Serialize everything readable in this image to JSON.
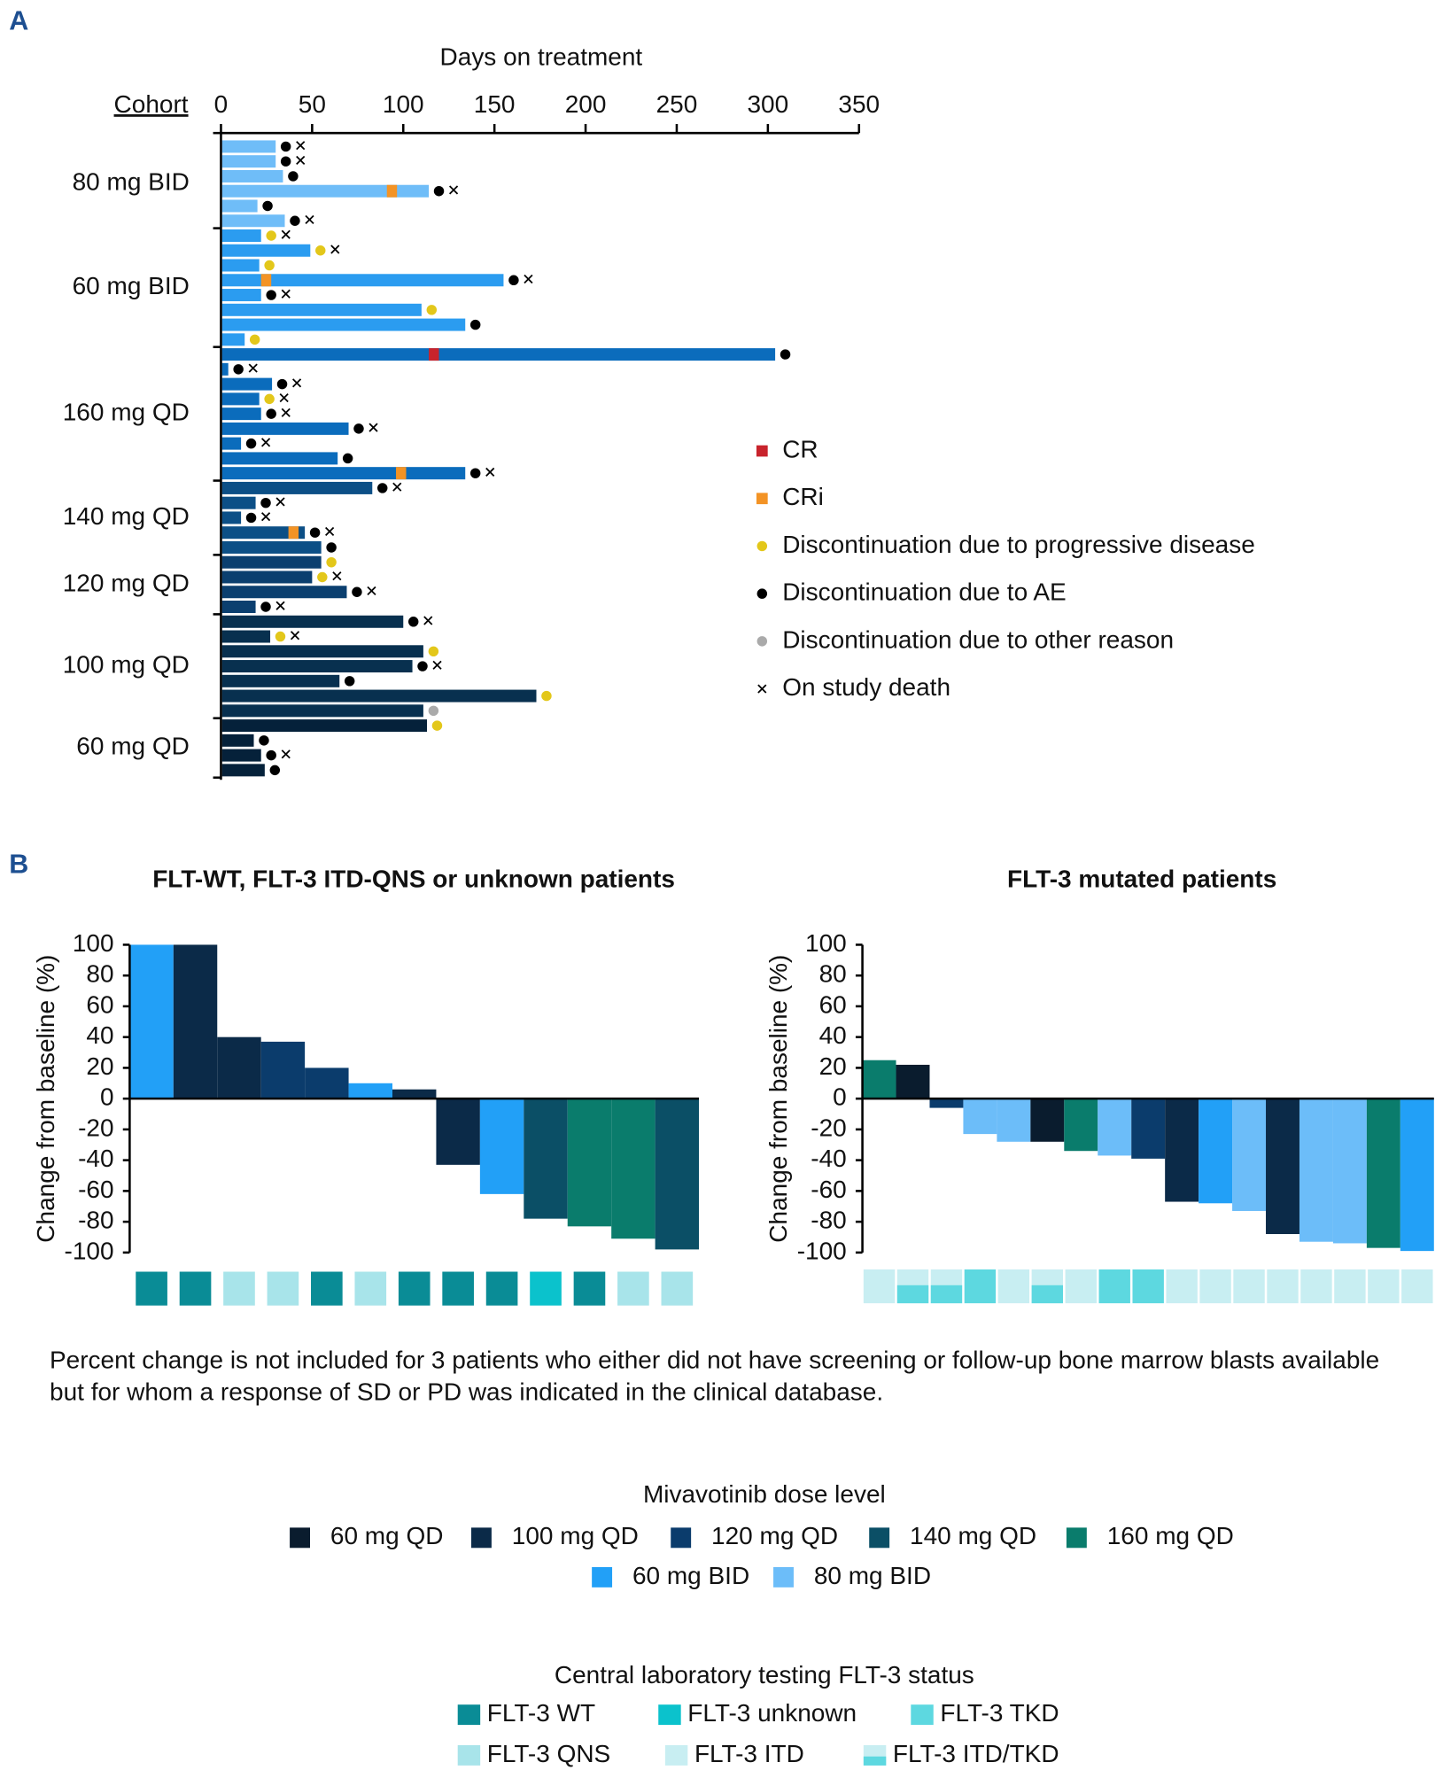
{
  "panel_labels": [
    "A",
    "B"
  ],
  "chart_data": [
    {
      "type": "swimmer",
      "xlabel": "Days on treatment",
      "ylabel": "Cohort",
      "xlim": [
        0,
        350
      ],
      "xticks": [
        0,
        50,
        100,
        150,
        200,
        250,
        300,
        350
      ],
      "legend": [
        {
          "label": "CR",
          "color": "#c8232c",
          "shape": "square"
        },
        {
          "label": "CRi",
          "color": "#f39325",
          "shape": "square"
        },
        {
          "label": "Discontinuation due to progressive disease",
          "color": "#e3c71a",
          "shape": "circle"
        },
        {
          "label": "Discontinuation due to AE",
          "color": "#000000",
          "shape": "circle"
        },
        {
          "label": "Discontinuation due to other reason",
          "color": "#aaaaaa",
          "shape": "circle"
        },
        {
          "label": "On study death",
          "color": "#000000",
          "shape": "cross"
        }
      ],
      "cohorts": [
        {
          "name": "80 mg BID",
          "color": "#6fbdf8",
          "days": [
            30,
            30,
            34,
            114,
            20,
            35
          ],
          "response": [
            null,
            null,
            null,
            1,
            null,
            null
          ],
          "response_day": [
            null,
            null,
            null,
            91,
            null,
            null
          ],
          "end": [
            3,
            3,
            3,
            3,
            3,
            3
          ],
          "death": [
            true,
            true,
            false,
            true,
            false,
            true
          ]
        },
        {
          "name": "60 mg BID",
          "color": "#2b9cf0",
          "days": [
            22,
            49,
            21,
            155,
            22,
            110,
            134,
            13
          ],
          "response": [
            null,
            null,
            null,
            1,
            null,
            null,
            null,
            null
          ],
          "response_day": [
            null,
            null,
            null,
            22,
            null,
            null,
            null,
            null
          ],
          "end": [
            2,
            2,
            2,
            3,
            3,
            2,
            3,
            2
          ],
          "death": [
            true,
            true,
            false,
            true,
            true,
            false,
            false,
            false
          ]
        },
        {
          "name": "160 mg QD",
          "color": "#0b6cbc",
          "days": [
            304,
            4,
            28,
            21,
            22,
            70,
            11,
            64,
            134
          ],
          "response": [
            0,
            null,
            null,
            null,
            null,
            null,
            null,
            null,
            1
          ],
          "response_day": [
            114,
            null,
            null,
            null,
            null,
            null,
            null,
            null,
            96
          ],
          "end": [
            3,
            3,
            3,
            2,
            3,
            3,
            3,
            3,
            3
          ],
          "death": [
            false,
            true,
            true,
            true,
            true,
            true,
            true,
            false,
            true
          ]
        },
        {
          "name": "140 mg QD",
          "color": "#0c4f86",
          "days": [
            83,
            19,
            11,
            46,
            55
          ],
          "response": [
            null,
            null,
            null,
            1,
            null
          ],
          "response_day": [
            null,
            null,
            null,
            37,
            null
          ],
          "end": [
            3,
            3,
            3,
            3,
            3
          ],
          "death": [
            true,
            true,
            true,
            true,
            false
          ]
        },
        {
          "name": "120 mg QD",
          "color": "#0b3f6f",
          "days": [
            55,
            50,
            69,
            19
          ],
          "response": [
            null,
            null,
            null,
            null
          ],
          "response_day": [
            null,
            null,
            null,
            null
          ],
          "end": [
            2,
            2,
            3,
            3
          ],
          "death": [
            false,
            true,
            true,
            true
          ]
        },
        {
          "name": "100 mg QD",
          "color": "#08304f",
          "days": [
            100,
            27,
            111,
            105,
            65,
            173,
            111
          ],
          "response": [
            null,
            null,
            null,
            null,
            null,
            null,
            null
          ],
          "response_day": [
            null,
            null,
            null,
            null,
            null,
            null,
            null
          ],
          "end": [
            3,
            2,
            2,
            3,
            3,
            2,
            4
          ],
          "death": [
            true,
            true,
            false,
            true,
            false,
            false,
            false
          ]
        },
        {
          "name": "60 mg QD",
          "color": "#05213a",
          "days": [
            113,
            18,
            22,
            24
          ],
          "response": [
            null,
            null,
            null,
            null
          ],
          "response_day": [
            null,
            null,
            null,
            null
          ],
          "end": [
            2,
            3,
            3,
            3
          ],
          "death": [
            false,
            false,
            true,
            false
          ]
        }
      ]
    },
    {
      "type": "waterfall",
      "title": "FLT-WT, FLT-3 ITD-QNS or unknown patients",
      "ylabel": "Change from baseline (%)",
      "ylim": [
        -100,
        100
      ],
      "yticks": [
        100,
        80,
        60,
        40,
        20,
        0,
        -20,
        -40,
        -60,
        -80,
        -100
      ],
      "values": [
        100,
        100,
        40,
        37,
        20,
        10,
        6,
        -43,
        -62,
        -78,
        -83,
        -91,
        -98
      ],
      "dose": [
        5,
        1,
        1,
        2,
        2,
        5,
        1,
        1,
        5,
        3,
        4,
        4,
        3
      ],
      "flt3": [
        0,
        0,
        3,
        3,
        0,
        3,
        0,
        0,
        0,
        1,
        0,
        3,
        3
      ]
    },
    {
      "type": "waterfall",
      "title": "FLT-3 mutated patients",
      "ylabel": "Change from baseline (%)",
      "ylim": [
        -100,
        100
      ],
      "yticks": [
        100,
        80,
        60,
        40,
        20,
        0,
        -20,
        -40,
        -60,
        -80,
        -100
      ],
      "values": [
        25,
        22,
        -6,
        -23,
        -28,
        -28,
        -34,
        -37,
        -39,
        -67,
        -68,
        -73,
        -88,
        -93,
        -94,
        -97,
        -99
      ],
      "dose": [
        4,
        0,
        2,
        6,
        6,
        0,
        4,
        6,
        2,
        1,
        5,
        6,
        1,
        6,
        6,
        4,
        5
      ],
      "flt3": [
        4,
        5,
        5,
        2,
        4,
        5,
        4,
        2,
        2,
        4,
        4,
        4,
        4,
        4,
        4,
        4,
        4
      ]
    }
  ],
  "footnote": [
    "Percent change is not included for 3 patients who either did not have screening or follow-up bone marrow blasts available",
    "but for whom a response of SD or PD was indicated in the clinical database."
  ],
  "legends": {
    "dose": {
      "title": "Mivavotinib dose level",
      "items": [
        {
          "label": "60 mg QD",
          "color": "#0a1c2e"
        },
        {
          "label": "100 mg QD",
          "color": "#0b2a48"
        },
        {
          "label": "120 mg QD",
          "color": "#0b3c6c"
        },
        {
          "label": "140 mg QD",
          "color": "#0b4f66"
        },
        {
          "label": "160 mg QD",
          "color": "#0a7c6c"
        },
        {
          "label": "60 mg BID",
          "color": "#22a0f7"
        },
        {
          "label": "80 mg BID",
          "color": "#6cbdf9"
        }
      ]
    },
    "flt3": {
      "title": "Central laboratory testing FLT-3 status",
      "items": [
        {
          "label": "FLT-3 WT",
          "color": "#0a8c96"
        },
        {
          "label": "FLT-3 unknown",
          "color": "#0bc2cc"
        },
        {
          "label": "FLT-3 TKD",
          "color": "#5dd8e0"
        },
        {
          "label": "FLT-3 QNS",
          "color": "#a8e4ea"
        },
        {
          "label": "FLT-3 ITD",
          "color": "#c8eef2"
        },
        {
          "label": "FLT-3 ITD/TKD",
          "color": "#c8eef2",
          "lower_color": "#5dd8e0"
        }
      ]
    }
  }
}
